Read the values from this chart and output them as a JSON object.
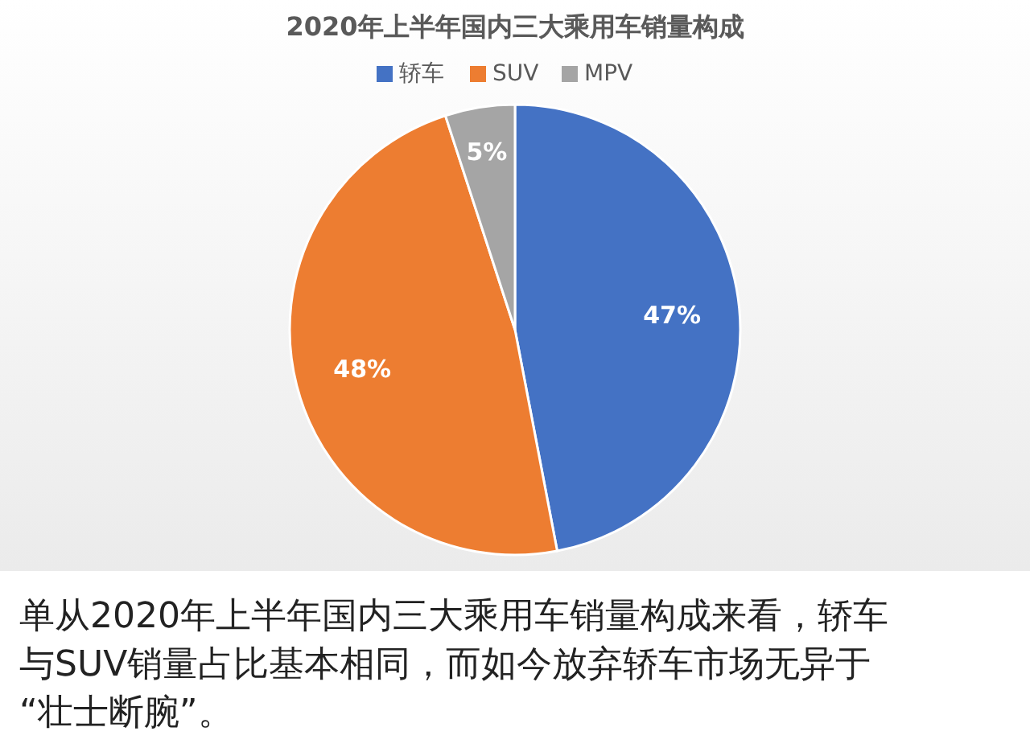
{
  "chart_data": {
    "type": "pie",
    "title": "2020年上半年国内三大乘用车销量构成",
    "categories": [
      "轿车",
      "SUV",
      "MPV"
    ],
    "values": [
      47,
      48,
      5
    ],
    "colors": [
      "#4472c4",
      "#ed7d31",
      "#a5a5a5"
    ],
    "value_labels": [
      "47%",
      "48%",
      "5%"
    ],
    "legend": "top",
    "annotations": [
      "单从2020年上半年国内三大乘用车销量构成来看，轿车与SUV销量占比基本相同，而如今放弃轿车市场无异于“壮士断腕”。"
    ]
  }
}
